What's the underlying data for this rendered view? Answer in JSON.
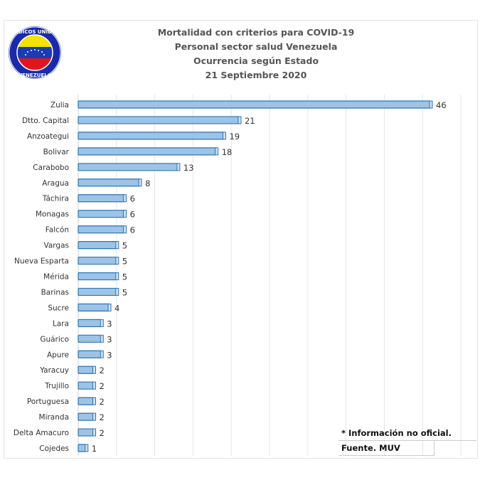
{
  "logo": {
    "top_text": "MEDICOS UNIDOS",
    "bottom_text": "VENEZUELA"
  },
  "chart_data": {
    "type": "bar",
    "orientation": "horizontal",
    "title": [
      "Mortalidad con criterios para COVID-19",
      "Personal sector salud Venezuela",
      "Ocurrencia según Estado",
      "21 Septiembre 2020"
    ],
    "categories": [
      "Zulia",
      "Dtto. Capital",
      "Anzoategui",
      "Bolivar",
      "Carabobo",
      "Aragua",
      "Táchira",
      "Monagas",
      "Falcón",
      "Vargas",
      "Nueva Esparta",
      "Mérida",
      "Barinas",
      "Sucre",
      "Lara",
      "Guárico",
      "Apure",
      "Yaracuy",
      "Trujillo",
      "Portuguesa",
      "Miranda",
      "Delta Amacuro",
      "Cojedes"
    ],
    "values": [
      46,
      21,
      19,
      18,
      13,
      8,
      6,
      6,
      6,
      5,
      5,
      5,
      5,
      4,
      3,
      3,
      3,
      2,
      2,
      2,
      2,
      2,
      1
    ],
    "xlim": [
      0,
      50
    ],
    "grid": true,
    "bar_color": "#9dc3e6",
    "bar_edge": "#2e75b6"
  },
  "notes": {
    "disclaimer": "* Información no oficial.",
    "source": "Fuente. MUV"
  }
}
